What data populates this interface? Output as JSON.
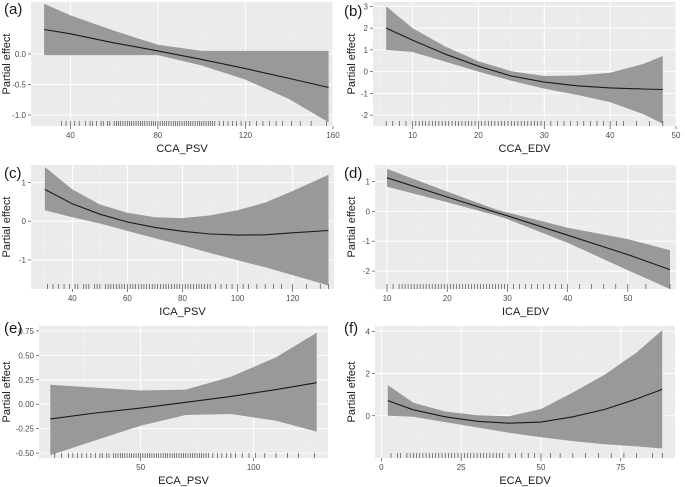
{
  "figure": {
    "background_panel": "#ebebeb",
    "grid_major": "#ffffff",
    "ribbon_color": "#999999",
    "line_color": "#1a1a1a",
    "rug_color": "#333333"
  },
  "chart_data": [
    {
      "type": "line",
      "panel_label": "(a)",
      "xlabel": "CCA_PSV",
      "ylabel": "Partial effect",
      "xlim": [
        22,
        160
      ],
      "ylim": [
        -1.18,
        0.85
      ],
      "xticks": [
        40,
        80,
        120,
        160
      ],
      "yticks": [
        -1.0,
        -0.5,
        0.0
      ],
      "ytick_labels": [
        "-1.0",
        "-0.5",
        "0.0"
      ],
      "series": [
        {
          "x": [
            28,
            40,
            60,
            80,
            100,
            120,
            140,
            158
          ],
          "fit": [
            0.4,
            0.33,
            0.18,
            0.05,
            -0.09,
            -0.24,
            -0.4,
            -0.55
          ],
          "lower": [
            -0.02,
            -0.02,
            -0.02,
            -0.02,
            -0.19,
            -0.42,
            -0.74,
            -1.12
          ],
          "upper": [
            0.82,
            0.63,
            0.38,
            0.15,
            0.05,
            0.05,
            0.05,
            0.05
          ]
        }
      ],
      "rug": [
        36,
        38,
        40,
        42,
        44,
        47,
        49,
        50,
        52,
        54,
        55,
        57,
        58,
        60,
        61,
        62,
        63,
        64,
        65,
        66,
        67,
        68,
        69,
        70,
        71,
        72,
        73,
        74,
        75,
        76,
        77,
        78,
        79,
        80,
        81,
        82,
        83,
        84,
        85,
        86,
        87,
        88,
        89,
        90,
        91,
        92,
        93,
        94,
        95,
        96,
        97,
        98,
        99,
        100,
        101,
        102,
        103,
        104,
        105,
        106,
        108,
        110,
        112,
        114,
        116,
        118,
        120,
        122,
        125,
        128,
        131,
        134,
        137,
        141,
        145,
        150,
        157
      ]
    },
    {
      "type": "line",
      "panel_label": "(b)",
      "xlabel": "CCA_EDV",
      "ylabel": "Partial effect",
      "xlim": [
        4,
        50
      ],
      "ylim": [
        -2.5,
        3.2
      ],
      "xticks": [
        10,
        20,
        30,
        40,
        50
      ],
      "yticks": [
        -2,
        -1,
        0,
        1,
        2,
        3
      ],
      "ytick_labels": [
        "-2",
        "-1",
        "0",
        "1",
        "2",
        "3"
      ],
      "series": [
        {
          "x": [
            6,
            10,
            15,
            20,
            25,
            30,
            35,
            40,
            45,
            48
          ],
          "fit": [
            2.0,
            1.45,
            0.8,
            0.25,
            -0.2,
            -0.48,
            -0.65,
            -0.75,
            -0.8,
            -0.82
          ],
          "lower": [
            1.0,
            0.9,
            0.45,
            0.0,
            -0.42,
            -0.78,
            -1.07,
            -1.4,
            -1.95,
            -2.4
          ],
          "upper": [
            3.0,
            2.0,
            1.15,
            0.48,
            0.02,
            -0.2,
            -0.18,
            -0.05,
            0.35,
            0.72
          ]
        }
      ],
      "rug": [
        6,
        7,
        8,
        9,
        10,
        10.5,
        11,
        11.5,
        12,
        12.5,
        13,
        13.5,
        14,
        14.5,
        15,
        15.5,
        16,
        16.5,
        17,
        17.5,
        18,
        18.5,
        19,
        19.5,
        20,
        20.5,
        21,
        21.5,
        22,
        22.5,
        23,
        23.5,
        24,
        24.5,
        25,
        25.5,
        26,
        26.5,
        27,
        27.5,
        28,
        28.5,
        29,
        29.5,
        30,
        31,
        32,
        33,
        34,
        35,
        36,
        37,
        38,
        39,
        40,
        41,
        42,
        44,
        46,
        48
      ]
    },
    {
      "type": "line",
      "panel_label": "(c)",
      "xlabel": "ICA_PSV",
      "ylabel": "Partial effect",
      "xlim": [
        25,
        135
      ],
      "ylim": [
        -1.75,
        1.45
      ],
      "xticks": [
        40,
        60,
        80,
        100,
        120
      ],
      "yticks": [
        -1,
        0,
        1
      ],
      "ytick_labels": [
        "-1",
        "0",
        "1"
      ],
      "series": [
        {
          "x": [
            30,
            40,
            50,
            60,
            70,
            80,
            90,
            100,
            110,
            120,
            133
          ],
          "fit": [
            0.82,
            0.45,
            0.18,
            -0.02,
            -0.16,
            -0.26,
            -0.33,
            -0.36,
            -0.35,
            -0.3,
            -0.24
          ],
          "lower": [
            0.28,
            0.1,
            -0.06,
            -0.25,
            -0.44,
            -0.62,
            -0.82,
            -1.01,
            -1.19,
            -1.39,
            -1.66
          ],
          "upper": [
            1.4,
            0.82,
            0.43,
            0.22,
            0.1,
            0.08,
            0.15,
            0.28,
            0.48,
            0.78,
            1.2
          ]
        }
      ],
      "rug": [
        31,
        33,
        35,
        37,
        39,
        41,
        42,
        44,
        45,
        46,
        48,
        49,
        50,
        52,
        53,
        54,
        55,
        56,
        57,
        58,
        59,
        60,
        61,
        62,
        63,
        64,
        65,
        66,
        67,
        68,
        69,
        70,
        71,
        72,
        73,
        74,
        75,
        76,
        77,
        78,
        79,
        80,
        81,
        82,
        83,
        84,
        85,
        86,
        87,
        88,
        89,
        90,
        92,
        94,
        96,
        98,
        100,
        102,
        104,
        107,
        110,
        113,
        116,
        120,
        125,
        130,
        133
      ]
    },
    {
      "type": "line",
      "panel_label": "(d)",
      "xlabel": "ICA_EDV",
      "ylabel": "Partial effect",
      "xlim": [
        8,
        58
      ],
      "ylim": [
        -2.6,
        1.55
      ],
      "xticks": [
        10,
        20,
        30,
        40,
        50
      ],
      "yticks": [
        -2,
        -1,
        0,
        1
      ],
      "ytick_labels": [
        "-2",
        "-1",
        "0",
        "1"
      ],
      "series": [
        {
          "x": [
            10,
            20,
            28,
            30,
            40,
            50,
            57
          ],
          "fit": [
            1.12,
            0.48,
            -0.03,
            -0.15,
            -0.8,
            -1.45,
            -1.95
          ],
          "lower": [
            0.82,
            0.3,
            -0.13,
            -0.26,
            -1.05,
            -1.97,
            -2.6
          ],
          "upper": [
            1.42,
            0.66,
            0.07,
            -0.04,
            -0.55,
            -0.93,
            -1.3
          ]
        }
      ],
      "rug": [
        10,
        11,
        12,
        12.5,
        13,
        13.5,
        14,
        14.5,
        15,
        15.5,
        16,
        16.5,
        17,
        17.5,
        18,
        18.5,
        19,
        19.5,
        20,
        20.5,
        21,
        21.5,
        22,
        22.5,
        23,
        23.5,
        24,
        24.5,
        25,
        25.5,
        26,
        26.5,
        27,
        27.5,
        28,
        28.5,
        29,
        29.5,
        30,
        31,
        32,
        33,
        34,
        35,
        36,
        37,
        38,
        39,
        40,
        42,
        44,
        46,
        48,
        50,
        53,
        57
      ]
    },
    {
      "type": "line",
      "panel_label": "(e)",
      "xlabel": "ECA_PSV",
      "ylabel": "Partial effect",
      "xlim": [
        5,
        133
      ],
      "ylim": [
        -0.55,
        0.8
      ],
      "xticks": [
        50,
        100
      ],
      "yticks": [
        -0.5,
        -0.25,
        0.0,
        0.25,
        0.5,
        0.75
      ],
      "ytick_labels": [
        "-0.50",
        "-0.25",
        "0.00",
        "0.25",
        "0.50",
        "0.75"
      ],
      "series": [
        {
          "x": [
            10,
            30,
            50,
            70,
            90,
            110,
            128
          ],
          "fit": [
            -0.15,
            -0.09,
            -0.04,
            0.02,
            0.08,
            0.15,
            0.22
          ],
          "lower": [
            -0.52,
            -0.37,
            -0.22,
            -0.11,
            -0.1,
            -0.17,
            -0.28
          ],
          "upper": [
            0.2,
            0.17,
            0.14,
            0.15,
            0.28,
            0.48,
            0.73
          ]
        }
      ],
      "rug": [
        12,
        15,
        18,
        20,
        22,
        24,
        26,
        28,
        30,
        32,
        33,
        35,
        36,
        38,
        39,
        40,
        41,
        42,
        43,
        44,
        45,
        46,
        47,
        48,
        49,
        50,
        51,
        52,
        53,
        54,
        55,
        56,
        57,
        58,
        59,
        60,
        61,
        62,
        63,
        64,
        65,
        66,
        67,
        68,
        69,
        70,
        71,
        72,
        73,
        74,
        75,
        76,
        77,
        78,
        79,
        80,
        82,
        84,
        86,
        88,
        90,
        92,
        95,
        98,
        101,
        105,
        110,
        115,
        120,
        127
      ]
    },
    {
      "type": "line",
      "panel_label": "(f)",
      "xlabel": "ECA_EDV",
      "ylabel": "Partial effect",
      "xlim": [
        -2,
        92
      ],
      "ylim": [
        -2.0,
        4.25
      ],
      "xticks": [
        0,
        25,
        50,
        75
      ],
      "yticks": [
        0,
        2,
        4
      ],
      "ytick_labels": [
        "0",
        "2",
        "4"
      ],
      "series": [
        {
          "x": [
            2,
            10,
            20,
            30,
            40,
            50,
            60,
            70,
            80,
            88
          ],
          "fit": [
            0.72,
            0.28,
            -0.05,
            -0.26,
            -0.35,
            -0.3,
            -0.05,
            0.3,
            0.8,
            1.25
          ],
          "lower": [
            0.0,
            -0.05,
            -0.3,
            -0.55,
            -0.8,
            -1.02,
            -1.2,
            -1.35,
            -1.45,
            -1.55
          ],
          "upper": [
            1.45,
            0.62,
            0.2,
            0.02,
            -0.02,
            0.32,
            1.1,
            1.95,
            3.0,
            4.05
          ]
        }
      ],
      "rug": [
        3,
        5,
        6,
        8,
        9,
        10,
        11,
        12,
        13,
        14,
        15,
        16,
        17,
        18,
        19,
        20,
        21,
        22,
        23,
        24,
        25,
        26,
        27,
        28,
        29,
        30,
        31,
        32,
        33,
        34,
        35,
        36,
        37,
        38,
        40,
        42,
        44,
        46,
        48,
        50,
        53,
        56,
        60,
        64,
        68,
        72,
        76,
        80,
        85,
        88
      ]
    }
  ]
}
